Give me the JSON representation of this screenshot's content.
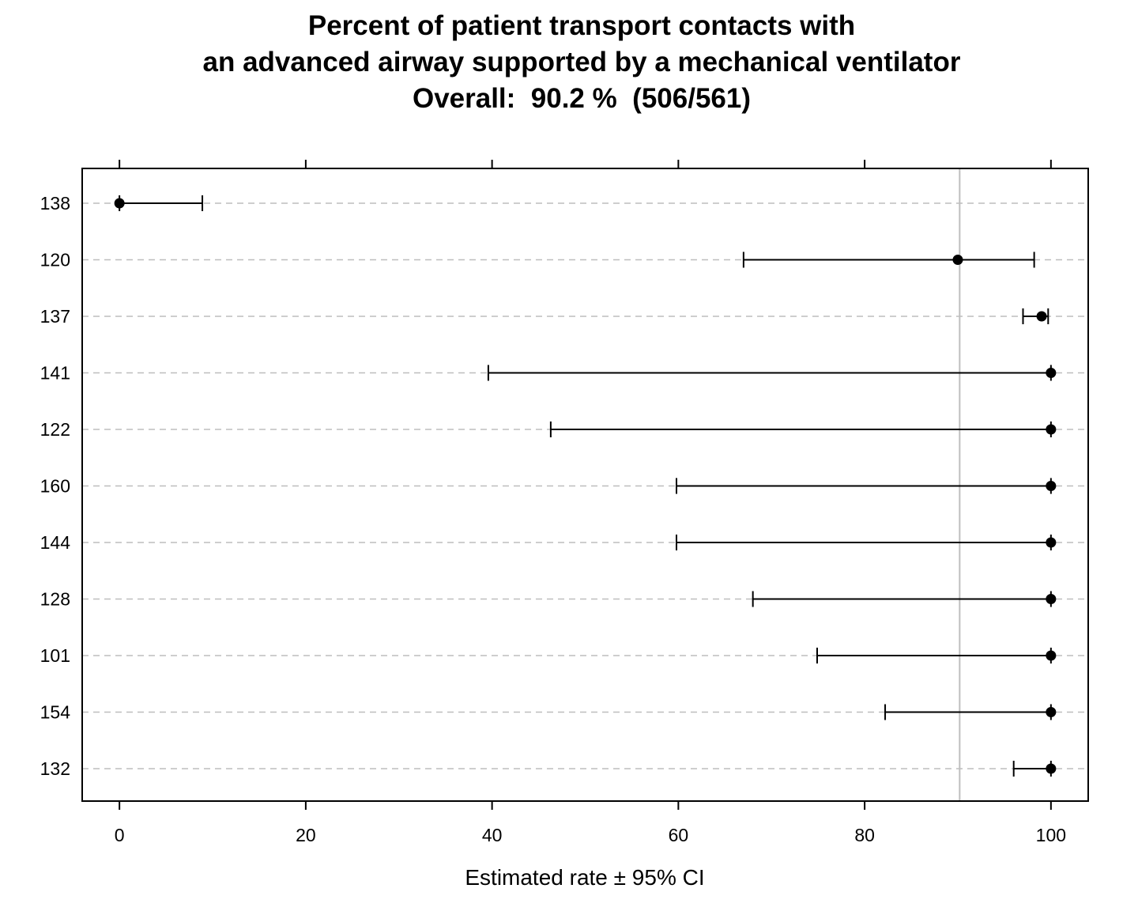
{
  "chart_data": {
    "type": "dot-whisker",
    "title_lines": [
      "Percent of patient transport contacts with",
      "an advanced airway supported by a mechanical ventilator",
      "Overall:  90.2 %  (506/561)"
    ],
    "xlabel": "Estimated rate ±  95% CI",
    "xlim": [
      -4,
      104
    ],
    "xticks": [
      0,
      20,
      40,
      60,
      80,
      100
    ],
    "reference_line": 90.2,
    "grid": "horizontal dashed",
    "categories": [
      "138",
      "120",
      "137",
      "141",
      "122",
      "160",
      "144",
      "128",
      "101",
      "154",
      "132"
    ],
    "estimate": [
      0,
      90,
      99,
      100,
      100,
      100,
      100,
      100,
      100,
      100,
      100
    ],
    "lower": [
      0,
      67,
      97,
      39.6,
      46.3,
      59.8,
      59.8,
      68,
      74.9,
      82.2,
      96
    ],
    "upper": [
      8.9,
      98.2,
      99.7,
      100,
      100,
      100,
      100,
      100,
      100,
      100,
      100
    ],
    "colors": {
      "points": "#000000",
      "grid": "#bebebe",
      "reference": "#bebebe"
    }
  }
}
